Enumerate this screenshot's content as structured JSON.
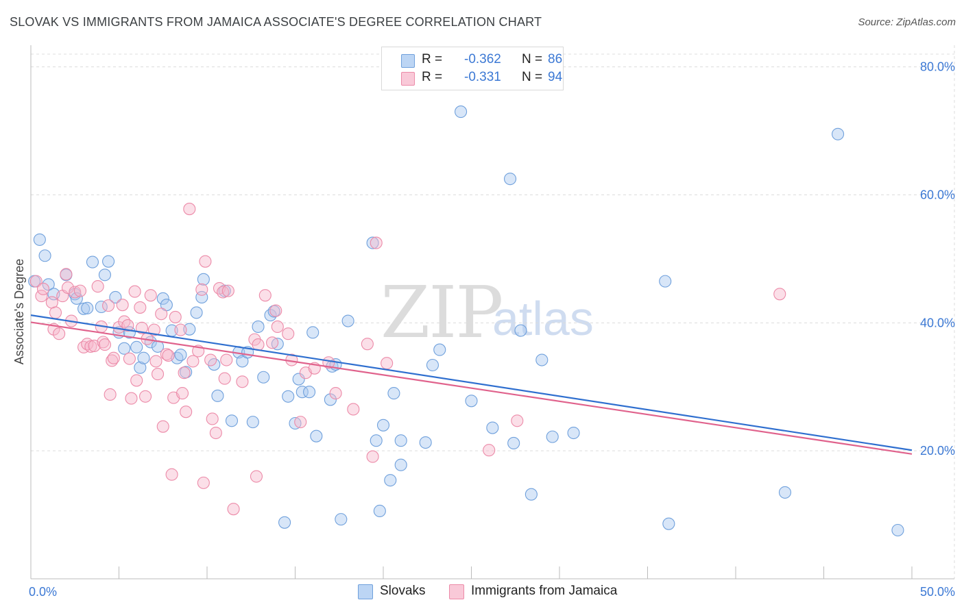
{
  "header": {
    "title": "SLOVAK VS IMMIGRANTS FROM JAMAICA ASSOCIATE'S DEGREE CORRELATION CHART",
    "source": "Source: ZipAtlas.com"
  },
  "watermark": {
    "zip": "ZIP",
    "atlas": "atlas"
  },
  "legend_top": {
    "rows": [
      {
        "r_label": "R =",
        "r_value": "-0.362",
        "n_label": "N =",
        "n_value": "86"
      },
      {
        "r_label": "R =",
        "r_value": "-0.331",
        "n_label": "N =",
        "n_value": "94"
      }
    ]
  },
  "legend_bottom": {
    "items": [
      {
        "label": "Slovaks"
      },
      {
        "label": "Immigrants from Jamaica"
      }
    ]
  },
  "colors": {
    "blue_fill": "#a9c8ef",
    "blue_stroke": "#6fa0dc",
    "blue_line": "#2f6fcf",
    "pink_fill": "#f7b9cc",
    "pink_stroke": "#ec8aa8",
    "pink_line": "#e0628c",
    "tick_label": "#3b78d4"
  },
  "chart_data": {
    "type": "scatter",
    "title": "SLOVAK VS IMMIGRANTS FROM JAMAICA ASSOCIATE'S DEGREE CORRELATION CHART",
    "xlabel": "",
    "ylabel": "Associate's Degree",
    "xlim": [
      0,
      50
    ],
    "ylim": [
      0,
      82
    ],
    "x_ticks": [
      {
        "value": 0,
        "label": "0.0%"
      },
      {
        "value": 50,
        "label": "50.0%"
      }
    ],
    "x_minor_ticks": [
      0,
      5,
      10,
      15,
      20,
      25,
      30,
      35,
      40,
      45,
      50
    ],
    "y_ticks": [
      {
        "value": 20,
        "label": "20.0%"
      },
      {
        "value": 40,
        "label": "40.0%"
      },
      {
        "value": 60,
        "label": "60.0%"
      },
      {
        "value": 80,
        "label": "80.0%"
      }
    ],
    "grid": true,
    "series": [
      {
        "name": "Slovaks",
        "color": "blue",
        "trend": {
          "x": [
            0,
            50
          ],
          "y": [
            41.2,
            20.1
          ]
        },
        "points": [
          [
            0.2,
            46.5
          ],
          [
            0.5,
            53
          ],
          [
            0.8,
            50.5
          ],
          [
            1.0,
            46
          ],
          [
            1.3,
            44.5
          ],
          [
            2.0,
            47.5
          ],
          [
            2.5,
            44.5
          ],
          [
            2.6,
            43.8
          ],
          [
            3.0,
            42.2
          ],
          [
            3.2,
            42.3
          ],
          [
            3.5,
            49.5
          ],
          [
            4.0,
            42.5
          ],
          [
            4.2,
            47.5
          ],
          [
            4.4,
            49.6
          ],
          [
            4.8,
            44
          ],
          [
            5.0,
            38.5
          ],
          [
            5.3,
            36
          ],
          [
            5.6,
            38.5
          ],
          [
            6.0,
            36.2
          ],
          [
            6.2,
            33
          ],
          [
            6.4,
            34.5
          ],
          [
            6.8,
            37
          ],
          [
            7.2,
            36.3
          ],
          [
            7.5,
            43.8
          ],
          [
            7.7,
            42.8
          ],
          [
            8.0,
            38.8
          ],
          [
            8.3,
            34.5
          ],
          [
            8.5,
            35
          ],
          [
            8.8,
            32.3
          ],
          [
            9.0,
            39
          ],
          [
            9.4,
            41.6
          ],
          [
            9.7,
            44
          ],
          [
            9.8,
            46.8
          ],
          [
            10.4,
            33.5
          ],
          [
            10.6,
            28.6
          ],
          [
            11.0,
            45
          ],
          [
            11.4,
            24.7
          ],
          [
            11.8,
            35.4
          ],
          [
            12.0,
            34
          ],
          [
            12.3,
            35.4
          ],
          [
            12.6,
            24.5
          ],
          [
            12.9,
            39.4
          ],
          [
            13.2,
            31.5
          ],
          [
            13.6,
            41.2
          ],
          [
            13.8,
            41.8
          ],
          [
            14.0,
            36.7
          ],
          [
            14.4,
            8.8
          ],
          [
            14.6,
            28.5
          ],
          [
            15.0,
            24.3
          ],
          [
            15.2,
            31.2
          ],
          [
            15.4,
            29.2
          ],
          [
            15.8,
            29.2
          ],
          [
            16.0,
            38.5
          ],
          [
            16.2,
            22.3
          ],
          [
            17.0,
            28
          ],
          [
            17.1,
            33.2
          ],
          [
            17.3,
            33.5
          ],
          [
            17.6,
            9.3
          ],
          [
            18.0,
            40.3
          ],
          [
            19.4,
            52.5
          ],
          [
            19.6,
            21.6
          ],
          [
            19.8,
            10.6
          ],
          [
            20.0,
            24
          ],
          [
            20.4,
            15.4
          ],
          [
            20.6,
            29
          ],
          [
            21.0,
            21.6
          ],
          [
            21.0,
            17.8
          ],
          [
            22.4,
            21.3
          ],
          [
            22.8,
            33.4
          ],
          [
            23.2,
            35.8
          ],
          [
            24.4,
            73
          ],
          [
            25.0,
            27.8
          ],
          [
            26.2,
            23.6
          ],
          [
            27.2,
            62.5
          ],
          [
            27.4,
            21.2
          ],
          [
            27.8,
            38.8
          ],
          [
            28.4,
            13.2
          ],
          [
            29.0,
            34.2
          ],
          [
            29.6,
            22.2
          ],
          [
            30.8,
            22.8
          ],
          [
            36.0,
            46.5
          ],
          [
            36.2,
            8.6
          ],
          [
            42.8,
            13.5
          ],
          [
            45.8,
            69.5
          ],
          [
            49.2,
            7.6
          ]
        ]
      },
      {
        "name": "Immigrants from Jamaica",
        "color": "pink",
        "trend": {
          "x": [
            0,
            50
          ],
          "y": [
            40.1,
            19.5
          ]
        },
        "points": [
          [
            0.3,
            46.5
          ],
          [
            0.6,
            44.2
          ],
          [
            0.7,
            45.3
          ],
          [
            1.2,
            43.2
          ],
          [
            1.4,
            41.6
          ],
          [
            1.3,
            39
          ],
          [
            1.6,
            38.3
          ],
          [
            1.8,
            44.2
          ],
          [
            2.0,
            47.6
          ],
          [
            2.1,
            45.5
          ],
          [
            2.3,
            40.3
          ],
          [
            2.5,
            44.8
          ],
          [
            2.8,
            45
          ],
          [
            3.0,
            36.2
          ],
          [
            3.2,
            36.7
          ],
          [
            3.4,
            36.3
          ],
          [
            3.6,
            36.4
          ],
          [
            3.8,
            45.7
          ],
          [
            4.0,
            39.4
          ],
          [
            4.1,
            37
          ],
          [
            4.2,
            36.6
          ],
          [
            4.4,
            42.7
          ],
          [
            4.5,
            28.8
          ],
          [
            4.6,
            34.1
          ],
          [
            4.7,
            34.5
          ],
          [
            5.0,
            39.3
          ],
          [
            5.2,
            42.8
          ],
          [
            5.3,
            40.2
          ],
          [
            5.5,
            39.6
          ],
          [
            5.6,
            34.4
          ],
          [
            5.7,
            28.2
          ],
          [
            5.9,
            44.9
          ],
          [
            6.0,
            31
          ],
          [
            6.2,
            42.4
          ],
          [
            6.3,
            39.2
          ],
          [
            6.5,
            28.5
          ],
          [
            6.6,
            37.5
          ],
          [
            6.8,
            44.3
          ],
          [
            7.0,
            38.9
          ],
          [
            7.1,
            34
          ],
          [
            7.2,
            32
          ],
          [
            7.4,
            41.4
          ],
          [
            7.5,
            23.8
          ],
          [
            7.7,
            35.1
          ],
          [
            7.8,
            34.9
          ],
          [
            8.0,
            16.3
          ],
          [
            8.1,
            28.3
          ],
          [
            8.2,
            40.9
          ],
          [
            8.5,
            38.9
          ],
          [
            8.6,
            29
          ],
          [
            8.7,
            32.2
          ],
          [
            8.8,
            26.1
          ],
          [
            9.0,
            57.8
          ],
          [
            9.2,
            34
          ],
          [
            9.5,
            35.6
          ],
          [
            9.7,
            45.2
          ],
          [
            9.8,
            15
          ],
          [
            9.9,
            49.6
          ],
          [
            10.2,
            34.2
          ],
          [
            10.3,
            25
          ],
          [
            10.5,
            22.8
          ],
          [
            10.7,
            45.4
          ],
          [
            10.9,
            44.8
          ],
          [
            11.0,
            31.3
          ],
          [
            11.1,
            34.2
          ],
          [
            11.2,
            45
          ],
          [
            11.5,
            10.9
          ],
          [
            12.0,
            30.8
          ],
          [
            12.7,
            37.4
          ],
          [
            12.8,
            16
          ],
          [
            12.9,
            36.6
          ],
          [
            13.3,
            44.3
          ],
          [
            13.7,
            36.9
          ],
          [
            13.9,
            41.9
          ],
          [
            14.0,
            39.4
          ],
          [
            14.6,
            38.3
          ],
          [
            14.8,
            34.2
          ],
          [
            15.3,
            24.5
          ],
          [
            15.6,
            32.2
          ],
          [
            16.1,
            32.9
          ],
          [
            16.9,
            33.8
          ],
          [
            17.3,
            29
          ],
          [
            18.3,
            26.5
          ],
          [
            19.1,
            36.7
          ],
          [
            19.6,
            52.5
          ],
          [
            19.4,
            19.1
          ],
          [
            20.2,
            33.7
          ],
          [
            26.0,
            20.1
          ],
          [
            27.6,
            24.7
          ],
          [
            42.5,
            44.5
          ]
        ]
      }
    ]
  }
}
